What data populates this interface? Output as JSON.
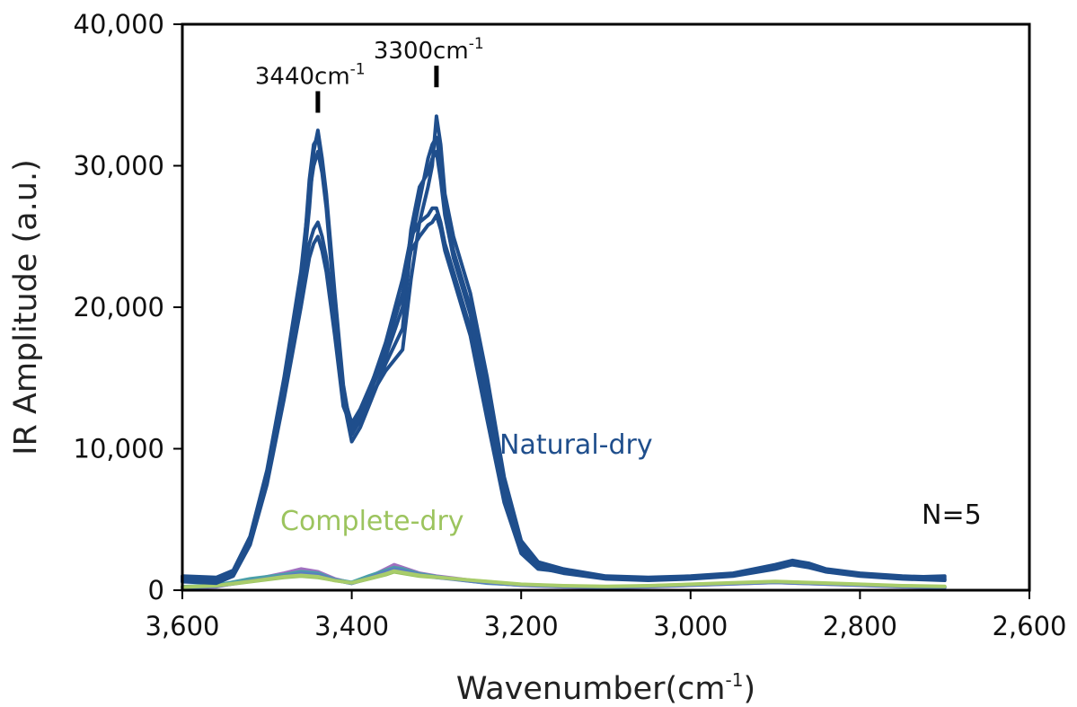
{
  "chart_data": {
    "type": "line",
    "xlabel": "Wavenumber(cm",
    "xlabel_sup": "-1",
    "xlabel_suffix": ")",
    "ylabel": "IR Amplitude (a.u.)",
    "xlim": [
      3600,
      2600
    ],
    "x_reversed": true,
    "ylim": [
      0,
      40000
    ],
    "x_ticks": [
      3600,
      3400,
      3200,
      3000,
      2800,
      2600
    ],
    "x_tick_labels": [
      "3,600",
      "3,400",
      "3,200",
      "3,000",
      "2,800",
      "2,600"
    ],
    "y_ticks": [
      0,
      10000,
      20000,
      30000,
      40000
    ],
    "y_tick_labels": [
      "0",
      "10,000",
      "20,000",
      "30,000",
      "40,000"
    ],
    "grid": false,
    "annotations": [
      {
        "x": 3440,
        "y": 34000,
        "label": "3440cm",
        "sup": "-1"
      },
      {
        "x": 3300,
        "y": 35800,
        "label": "3300cm",
        "sup": "-1"
      }
    ],
    "sample_count_label": "N=5",
    "series": [
      {
        "name": "Natural-dry",
        "color": "#1f4e8c",
        "x": [
          3600,
          3560,
          3540,
          3520,
          3500,
          3480,
          3460,
          3450,
          3445,
          3440,
          3435,
          3430,
          3420,
          3410,
          3400,
          3390,
          3380,
          3360,
          3340,
          3330,
          3320,
          3310,
          3305,
          3300,
          3295,
          3290,
          3280,
          3260,
          3240,
          3220,
          3200,
          3180,
          3150,
          3100,
          3050,
          3000,
          2950,
          2900,
          2880,
          2860,
          2840,
          2800,
          2750,
          2700
        ],
        "values": [
          800,
          700,
          1200,
          3500,
          8000,
          14000,
          21000,
          27000,
          31000,
          32500,
          30500,
          28000,
          21000,
          14500,
          11000,
          12000,
          13500,
          15500,
          17000,
          22000,
          26000,
          28500,
          30000,
          33500,
          31500,
          28000,
          25000,
          21000,
          15000,
          8000,
          3500,
          2000,
          1500,
          1000,
          900,
          1000,
          1200,
          1800,
          2100,
          1900,
          1500,
          1200,
          1000,
          900
        ]
      },
      {
        "name": "Natural-dry",
        "color": "#1f4e8c",
        "x": [
          3600,
          3560,
          3540,
          3520,
          3500,
          3480,
          3460,
          3450,
          3445,
          3440,
          3435,
          3430,
          3420,
          3410,
          3400,
          3390,
          3380,
          3360,
          3340,
          3330,
          3320,
          3310,
          3305,
          3300,
          3295,
          3290,
          3280,
          3260,
          3240,
          3220,
          3200,
          3180,
          3150,
          3100,
          3050,
          3000,
          2950,
          2900,
          2880,
          2860,
          2840,
          2800,
          2750,
          2700
        ],
        "values": [
          1000,
          900,
          1400,
          3800,
          8500,
          15000,
          22500,
          28000,
          30000,
          31000,
          29500,
          27000,
          20000,
          13500,
          10500,
          11500,
          13000,
          16000,
          18500,
          24500,
          27500,
          30500,
          31500,
          32000,
          30000,
          27000,
          24000,
          20000,
          14000,
          7500,
          3200,
          1800,
          1400,
          900,
          800,
          900,
          1100,
          1700,
          2000,
          1800,
          1400,
          1100,
          900,
          800
        ]
      },
      {
        "name": "Natural-dry",
        "color": "#1f4e8c",
        "x": [
          3600,
          3560,
          3540,
          3520,
          3500,
          3480,
          3460,
          3450,
          3445,
          3440,
          3435,
          3430,
          3420,
          3410,
          3400,
          3390,
          3380,
          3360,
          3340,
          3330,
          3320,
          3310,
          3305,
          3300,
          3295,
          3290,
          3280,
          3260,
          3240,
          3220,
          3200,
          3180,
          3150,
          3100,
          3050,
          3000,
          2950,
          2900,
          2880,
          2860,
          2840,
          2800,
          2750,
          2700
        ],
        "values": [
          600,
          500,
          1000,
          3200,
          7500,
          13500,
          20000,
          23500,
          24500,
          25000,
          24000,
          22500,
          18000,
          13000,
          11500,
          12500,
          14000,
          17500,
          22000,
          25000,
          26000,
          26500,
          27000,
          27000,
          26000,
          24500,
          22500,
          18500,
          12500,
          6500,
          2800,
          1600,
          1200,
          800,
          700,
          800,
          1000,
          1500,
          1800,
          1600,
          1300,
          1000,
          800,
          700
        ]
      },
      {
        "name": "Natural-dry",
        "color": "#1f4e8c",
        "x": [
          3600,
          3560,
          3540,
          3520,
          3500,
          3480,
          3460,
          3450,
          3445,
          3440,
          3435,
          3430,
          3420,
          3410,
          3400,
          3390,
          3380,
          3360,
          3340,
          3330,
          3320,
          3310,
          3305,
          3300,
          3295,
          3290,
          3280,
          3260,
          3240,
          3220,
          3200,
          3180,
          3150,
          3100,
          3050,
          3000,
          2950,
          2900,
          2880,
          2860,
          2840,
          2800,
          2750,
          2700
        ],
        "values": [
          900,
          800,
          1300,
          3600,
          8200,
          14500,
          21500,
          24500,
          25500,
          26000,
          25000,
          23500,
          19000,
          13800,
          11800,
          12800,
          14200,
          17000,
          21000,
          24000,
          25000,
          25800,
          26000,
          26500,
          25500,
          24000,
          22000,
          18000,
          12000,
          6200,
          2600,
          1500,
          1300,
          900,
          800,
          900,
          1100,
          1600,
          1900,
          1700,
          1300,
          1100,
          900,
          1000
        ]
      },
      {
        "name": "Natural-dry",
        "color": "#1f4e8c",
        "x": [
          3600,
          3560,
          3540,
          3520,
          3500,
          3480,
          3460,
          3450,
          3445,
          3440,
          3435,
          3430,
          3420,
          3410,
          3400,
          3390,
          3380,
          3360,
          3340,
          3330,
          3320,
          3310,
          3305,
          3300,
          3295,
          3290,
          3280,
          3260,
          3240,
          3220,
          3200,
          3180,
          3150,
          3100,
          3050,
          3000,
          2950,
          2900,
          2880,
          2860,
          2840,
          2800,
          2750,
          2700
        ],
        "values": [
          700,
          600,
          1100,
          3400,
          7800,
          14000,
          21000,
          29000,
          31500,
          32000,
          30000,
          27500,
          20500,
          14000,
          11000,
          12200,
          13800,
          16500,
          20000,
          25500,
          28500,
          29500,
          30500,
          31000,
          29000,
          26500,
          23500,
          19500,
          13500,
          7000,
          3000,
          1700,
          1300,
          850,
          750,
          850,
          1050,
          1600,
          1900,
          1700,
          1350,
          1050,
          850,
          750
        ]
      },
      {
        "name": "Complete-dry",
        "color": "#94c05a",
        "x": [
          3600,
          3560,
          3520,
          3480,
          3460,
          3440,
          3420,
          3400,
          3380,
          3360,
          3350,
          3340,
          3320,
          3300,
          3280,
          3260,
          3240,
          3200,
          3150,
          3100,
          3050,
          3000,
          2950,
          2900,
          2850,
          2800,
          2750,
          2700
        ],
        "values": [
          200,
          300,
          600,
          900,
          1000,
          900,
          700,
          500,
          800,
          1100,
          1300,
          1200,
          1000,
          900,
          800,
          700,
          600,
          400,
          300,
          250,
          300,
          400,
          500,
          600,
          500,
          400,
          300,
          250
        ]
      },
      {
        "name": "Complete-dry",
        "color": "#a070c0",
        "x": [
          3600,
          3560,
          3520,
          3480,
          3460,
          3440,
          3420,
          3400,
          3380,
          3360,
          3350,
          3340,
          3320,
          3300,
          3280,
          3260,
          3240,
          3200,
          3150,
          3100,
          3050,
          3000,
          2950,
          2900,
          2850,
          2800,
          2750,
          2700
        ],
        "values": [
          150,
          250,
          700,
          1200,
          1500,
          1300,
          800,
          500,
          900,
          1500,
          1800,
          1600,
          1200,
          1000,
          850,
          700,
          550,
          350,
          250,
          200,
          250,
          350,
          450,
          550,
          450,
          350,
          250,
          200
        ]
      },
      {
        "name": "Complete-dry",
        "color": "#4aa0a8",
        "x": [
          3600,
          3560,
          3520,
          3480,
          3460,
          3440,
          3420,
          3400,
          3380,
          3360,
          3350,
          3340,
          3320,
          3300,
          3280,
          3260,
          3240,
          3200,
          3150,
          3100,
          3050,
          3000,
          2950,
          2900,
          2850,
          2800,
          2750,
          2700
        ],
        "values": [
          250,
          350,
          800,
          1100,
          1300,
          1200,
          750,
          550,
          1000,
          1400,
          1600,
          1500,
          1150,
          950,
          800,
          650,
          500,
          380,
          280,
          230,
          280,
          380,
          480,
          580,
          480,
          380,
          280,
          230
        ]
      },
      {
        "name": "Complete-dry",
        "color": "#5a7fc0",
        "x": [
          3600,
          3560,
          3520,
          3480,
          3460,
          3440,
          3420,
          3400,
          3380,
          3360,
          3350,
          3340,
          3320,
          3300,
          3280,
          3260,
          3240,
          3200,
          3150,
          3100,
          3050,
          3000,
          2950,
          2900,
          2850,
          2800,
          2750,
          2700
        ],
        "values": [
          180,
          280,
          650,
          1000,
          1200,
          1100,
          720,
          480,
          850,
          1300,
          1500,
          1400,
          1100,
          900,
          780,
          640,
          520,
          360,
          260,
          210,
          260,
          360,
          460,
          560,
          460,
          360,
          260,
          210
        ]
      },
      {
        "name": "Complete-dry",
        "color": "#a8cc6a",
        "x": [
          3600,
          3560,
          3520,
          3480,
          3460,
          3440,
          3420,
          3400,
          3380,
          3360,
          3350,
          3340,
          3320,
          3300,
          3280,
          3260,
          3240,
          3200,
          3150,
          3100,
          3050,
          3000,
          2950,
          2900,
          2850,
          2800,
          2750,
          2700
        ],
        "values": [
          220,
          320,
          620,
          950,
          1050,
          950,
          680,
          520,
          820,
          1150,
          1350,
          1250,
          1050,
          920,
          820,
          720,
          620,
          420,
          320,
          270,
          320,
          420,
          520,
          620,
          520,
          420,
          320,
          270
        ]
      }
    ],
    "series_labels": [
      {
        "text": "Natural-dry",
        "color": "#1f4e8c"
      },
      {
        "text": "Complete-dry",
        "color": "#9cc45e"
      }
    ]
  }
}
